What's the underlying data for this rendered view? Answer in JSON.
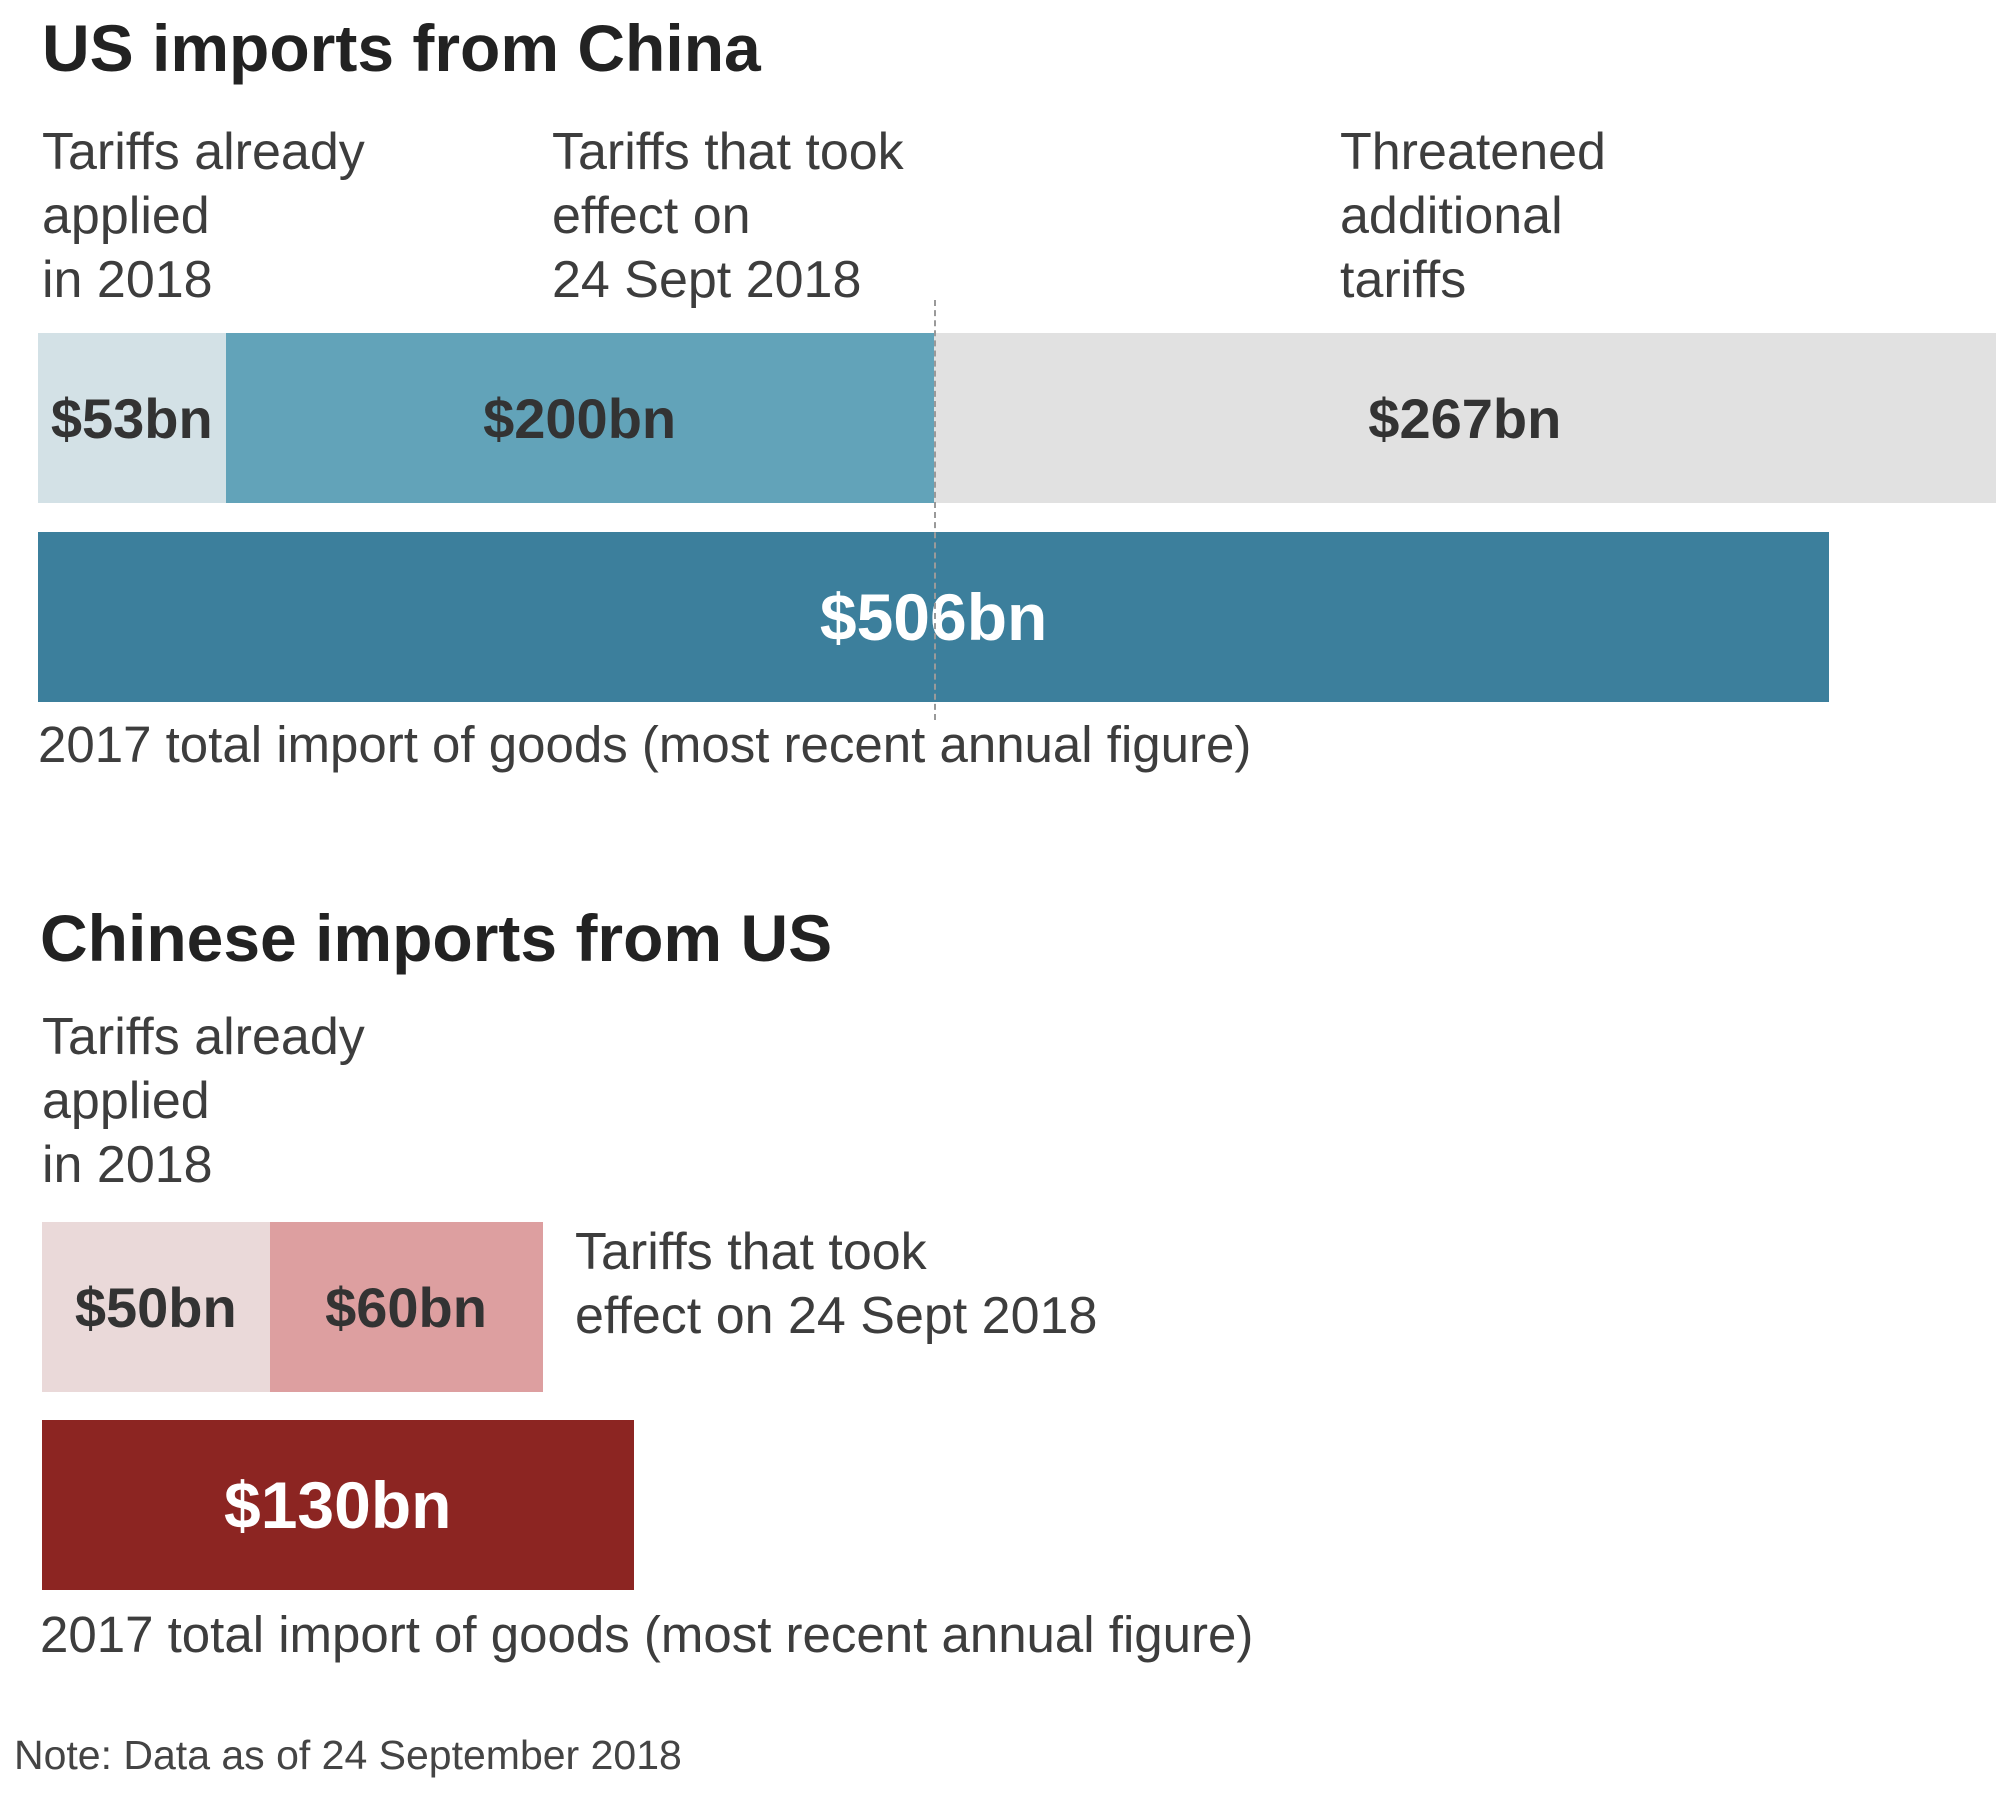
{
  "chart_data": [
    {
      "type": "bar",
      "title": "US imports from China",
      "unit": "bn",
      "series": [
        {
          "name": "Tariffs already applied in 2018",
          "values": [
            53
          ],
          "display": "$53bn",
          "color": "#d3e1e6"
        },
        {
          "name": "Tariffs that took effect on 24 Sept 2018",
          "values": [
            200
          ],
          "display": "$200bn",
          "color": "#62a3b9"
        },
        {
          "name": "Threatened additional tariffs",
          "values": [
            267
          ],
          "display": "$267bn",
          "color": "#e1e1e1"
        }
      ],
      "segment_labels": [
        "Tariffs already\napplied\nin 2018",
        "Tariffs that took\neffect on\n24 Sept 2018",
        "Threatened\nadditional\ntariffs"
      ],
      "total": {
        "value": 506,
        "display": "$506bn",
        "color": "#3c7f9c"
      },
      "total_caption": "2017 total import of goods (most recent annual figure)"
    },
    {
      "type": "bar",
      "title": "Chinese imports from US",
      "unit": "bn",
      "series": [
        {
          "name": "Tariffs already applied in 2018",
          "values": [
            50
          ],
          "display": "$50bn",
          "color": "#ead9d9"
        },
        {
          "name": "Tariffs that took effect on 24 Sept 2018",
          "values": [
            60
          ],
          "display": "$60bn",
          "color": "#dd9fa0"
        }
      ],
      "segment_labels": [
        "Tariffs already\napplied\nin 2018",
        "Tariffs that took\neffect on 24 Sept 2018"
      ],
      "total": {
        "value": 130,
        "display": "$130bn",
        "color": "#8c2522"
      },
      "total_caption": "2017 total import of goods (most recent annual figure)"
    }
  ],
  "note": "Note: Data as of 24 September 2018"
}
